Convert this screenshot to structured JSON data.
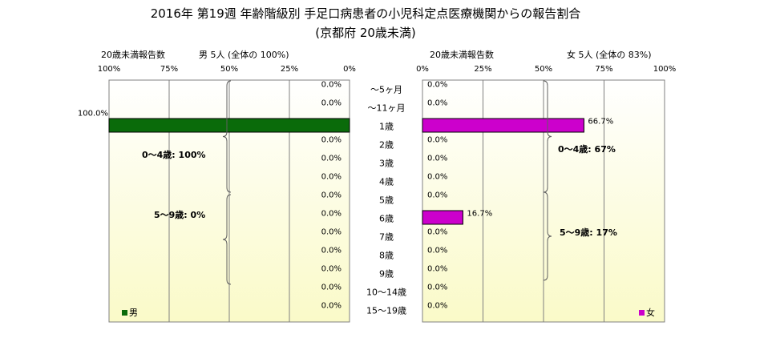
{
  "title": "2016年 第19週 年齢階級別 手足口病患者の小児科定点医療機関からの報告割合",
  "subtitle": "(京都府 20歳未満)",
  "left_panel": {
    "header_label": "20歳未満報告数",
    "header_info": "男 5人 (全体の 100%)",
    "legend_label": "男",
    "legend_color": "#0a6b0a",
    "group_labels": [
      "0～4歳: 100%",
      "5～9歳: 0%"
    ]
  },
  "right_panel": {
    "header_label": "20歳未満報告数",
    "header_info": "女 5人 (全体の 83%)",
    "legend_label": "女",
    "legend_color": "#cc00cc",
    "group_labels": [
      "0～4歳: 67%",
      "5～9歳: 17%"
    ]
  },
  "colors": {
    "male": "#0a6b0a",
    "female": "#cc00cc",
    "plot_top": "#ffffff",
    "plot_bottom": "#fafac8"
  },
  "chart_data": [
    {
      "type": "bar",
      "orientation": "horizontal",
      "direction": "right-to-left",
      "title": "",
      "categories": [
        "～5ヶ月",
        "～11ヶ月",
        "1歳",
        "2歳",
        "3歳",
        "4歳",
        "5歳",
        "6歳",
        "7歳",
        "8歳",
        "9歳",
        "10～14歳",
        "15～19歳"
      ],
      "series": [
        {
          "name": "男",
          "values": [
            0,
            0,
            100,
            0,
            0,
            0,
            0,
            0,
            0,
            0,
            0,
            0,
            0
          ],
          "labels": [
            "0.0%",
            "0.0%",
            "100.0%",
            "0.0%",
            "0.0%",
            "0.0%",
            "0.0%",
            "0.0%",
            "0.0%",
            "0.0%",
            "0.0%",
            "0.0%",
            "0.0%"
          ]
        }
      ],
      "xlim": [
        0,
        100
      ],
      "xticks": [
        "100%",
        "75%",
        "50%",
        "25%",
        "0%"
      ],
      "grid": true,
      "legend": "bottom-left"
    },
    {
      "type": "bar",
      "orientation": "horizontal",
      "direction": "left-to-right",
      "title": "",
      "categories": [
        "～5ヶ月",
        "～11ヶ月",
        "1歳",
        "2歳",
        "3歳",
        "4歳",
        "5歳",
        "6歳",
        "7歳",
        "8歳",
        "9歳",
        "10～14歳",
        "15～19歳"
      ],
      "series": [
        {
          "name": "女",
          "values": [
            0,
            0,
            66.7,
            0,
            0,
            0,
            0,
            16.7,
            0,
            0,
            0,
            0,
            0
          ],
          "labels": [
            "0.0%",
            "0.0%",
            "66.7%",
            "0.0%",
            "0.0%",
            "0.0%",
            "0.0%",
            "16.7%",
            "0.0%",
            "0.0%",
            "0.0%",
            "0.0%",
            "0.0%"
          ]
        }
      ],
      "xlim": [
        0,
        100
      ],
      "xticks": [
        "0%",
        "25%",
        "50%",
        "75%",
        "100%"
      ],
      "grid": true,
      "legend": "bottom-right"
    }
  ]
}
